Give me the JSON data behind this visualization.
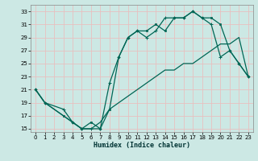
{
  "xlabel": "Humidex (Indice chaleur)",
  "bg_color": "#cce8e4",
  "grid_color": "#e8c0c0",
  "line_color": "#006655",
  "xlim": [
    -0.5,
    23.5
  ],
  "ylim": [
    14.5,
    34
  ],
  "yticks": [
    15,
    17,
    19,
    21,
    23,
    25,
    27,
    29,
    31,
    33
  ],
  "xticks": [
    0,
    1,
    2,
    3,
    4,
    5,
    6,
    7,
    8,
    9,
    10,
    11,
    12,
    13,
    14,
    15,
    16,
    17,
    18,
    19,
    20,
    21,
    22,
    23
  ],
  "line1_x": [
    0,
    1,
    3,
    4,
    5,
    6,
    7,
    8,
    9,
    10,
    11,
    12,
    13,
    14,
    15,
    16,
    17,
    18,
    19,
    20,
    21,
    22,
    23
  ],
  "line1_y": [
    21,
    19,
    17,
    16,
    15,
    16,
    15,
    18,
    26,
    29,
    30,
    30,
    31,
    30,
    32,
    32,
    33,
    32,
    32,
    31,
    27,
    25,
    23
  ],
  "line2_x": [
    0,
    1,
    3,
    4,
    5,
    6,
    7,
    8,
    9,
    10,
    11,
    12,
    13,
    14,
    15,
    16,
    17,
    18,
    19,
    20,
    21,
    22,
    23
  ],
  "line2_y": [
    21,
    19,
    18,
    16,
    15,
    15,
    15,
    22,
    26,
    29,
    30,
    29,
    30,
    32,
    32,
    32,
    33,
    32,
    31,
    26,
    27,
    25,
    23
  ],
  "line3_x": [
    0,
    1,
    2,
    3,
    4,
    5,
    6,
    7,
    8,
    9,
    10,
    11,
    12,
    13,
    14,
    15,
    16,
    17,
    18,
    19,
    20,
    21,
    22,
    23
  ],
  "line3_y": [
    21,
    19,
    18,
    17,
    16,
    15,
    15,
    16,
    18,
    19,
    20,
    21,
    22,
    23,
    24,
    24,
    25,
    25,
    26,
    27,
    28,
    28,
    29,
    23
  ],
  "marker1": "s",
  "marker2": "+"
}
